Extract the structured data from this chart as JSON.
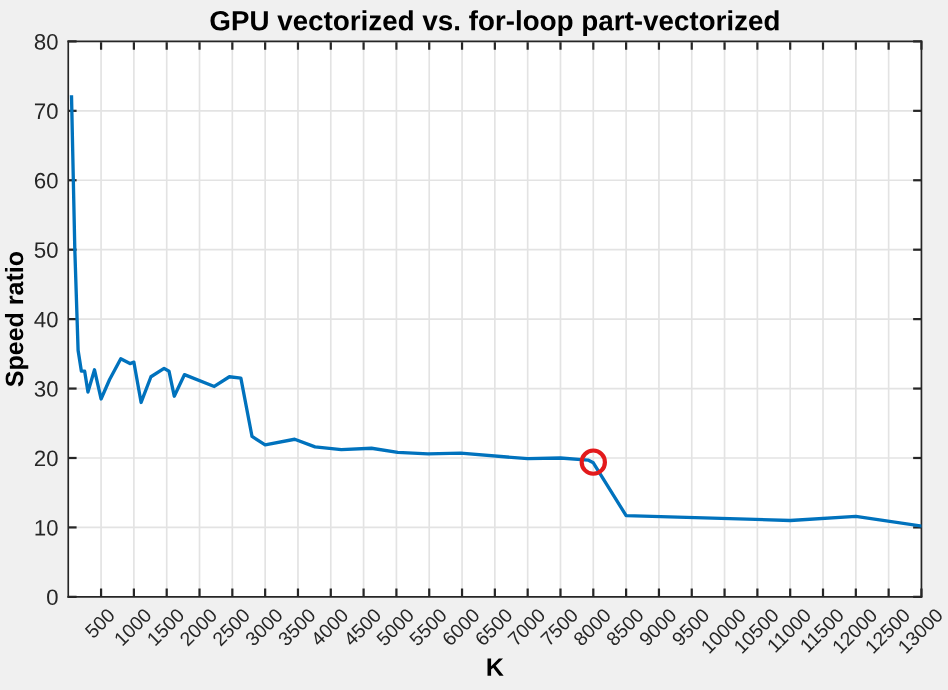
{
  "chart_data": {
    "type": "line",
    "title": "GPU vectorized vs. for-loop part-vectorized",
    "xlabel": "K",
    "ylabel": "Speed ratio",
    "series": [
      {
        "color": "#0072bd",
        "x": [
          50,
          100,
          150,
          200,
          250,
          300,
          400,
          500,
          630,
          800,
          940,
          1000,
          1110,
          1260,
          1460,
          1535,
          1615,
          1770,
          2225,
          2455,
          2630,
          2800,
          3000,
          3450,
          3760,
          4160,
          4620,
          5020,
          5480,
          5980,
          7000,
          7500,
          7920,
          8000,
          8500,
          11000,
          12000,
          13000
        ],
        "values": [
          72,
          50,
          35.5,
          32.5,
          32.5,
          29.5,
          32.7,
          28.5,
          31.3,
          34.3,
          33.6,
          33.8,
          28,
          31.7,
          32.9,
          32.5,
          28.9,
          32,
          30.3,
          31.7,
          31.5,
          23.1,
          21.9,
          22.7,
          21.6,
          21.2,
          21.4,
          20.8,
          20.6,
          20.7,
          19.9,
          20,
          19.7,
          19.3,
          11.7,
          11,
          11.6,
          10.2
        ]
      },
      {
        "type": "scatter",
        "marker": "circle",
        "color": "#e31a1c",
        "x": [
          8000
        ],
        "values": [
          19.4
        ]
      }
    ],
    "xlim": [
      0,
      13000
    ],
    "xticks": [
      500,
      1000,
      1500,
      2000,
      2500,
      3000,
      3500,
      4000,
      4500,
      5000,
      5500,
      6000,
      6500,
      7000,
      7500,
      8000,
      8500,
      9000,
      9500,
      10000,
      10500,
      11000,
      11500,
      12000,
      12500,
      13000
    ],
    "ylim": [
      0,
      80
    ],
    "yticks": [
      0,
      10,
      20,
      30,
      40,
      50,
      60,
      70,
      80
    ],
    "grid": true
  }
}
